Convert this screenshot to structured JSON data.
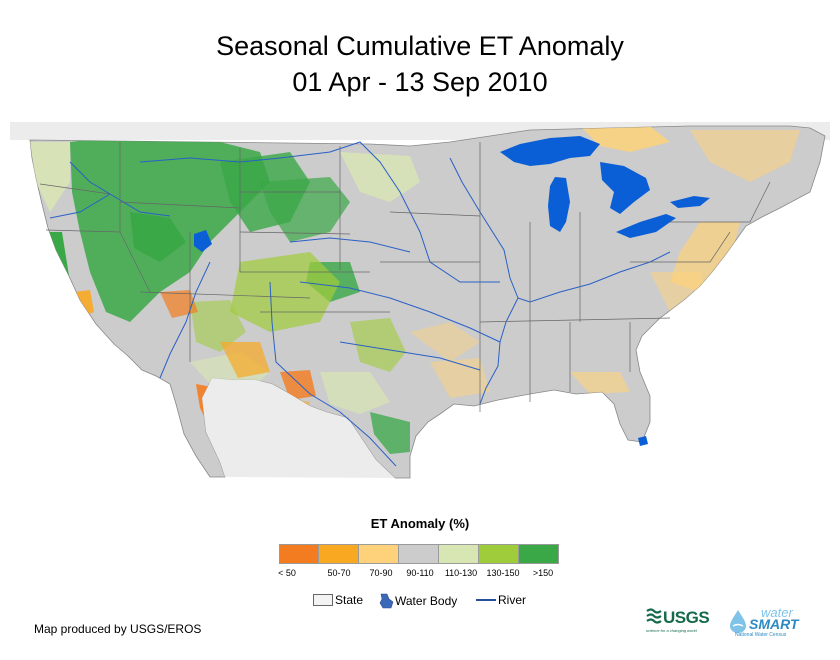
{
  "title": {
    "line1": "Seasonal Cumulative ET Anomaly",
    "line2": "01 Apr - 13 Sep 2010"
  },
  "legend": {
    "title": "ET Anomaly (%)",
    "classes": [
      {
        "label": "< 50",
        "color": "#f47c20"
      },
      {
        "label": "50-70",
        "color": "#f9a822"
      },
      {
        "label": "70-90",
        "color": "#fdd27a"
      },
      {
        "label": "90-110",
        "color": "#cccccc"
      },
      {
        "label": "110-130",
        "color": "#d8e6b4"
      },
      {
        "label": "130-150",
        "color": "#9fcc3b"
      },
      {
        "label": ">150",
        "color": "#3aa847"
      }
    ],
    "keys": {
      "state": "State",
      "water_body": "Water Body",
      "river": "River"
    }
  },
  "colors": {
    "land_no_data": "#ececec",
    "normal": "#cccccc",
    "water": "#0a5fd6",
    "river": "#2a60c6",
    "state_line": "#666666"
  },
  "credit": "Map produced by USGS/EROS",
  "logos": {
    "usgs": "USGS",
    "usgs_tagline": "science for a changing world",
    "watersmart_top": "water",
    "watersmart_main": "SMART",
    "watersmart_tagline": "National Water Census"
  }
}
